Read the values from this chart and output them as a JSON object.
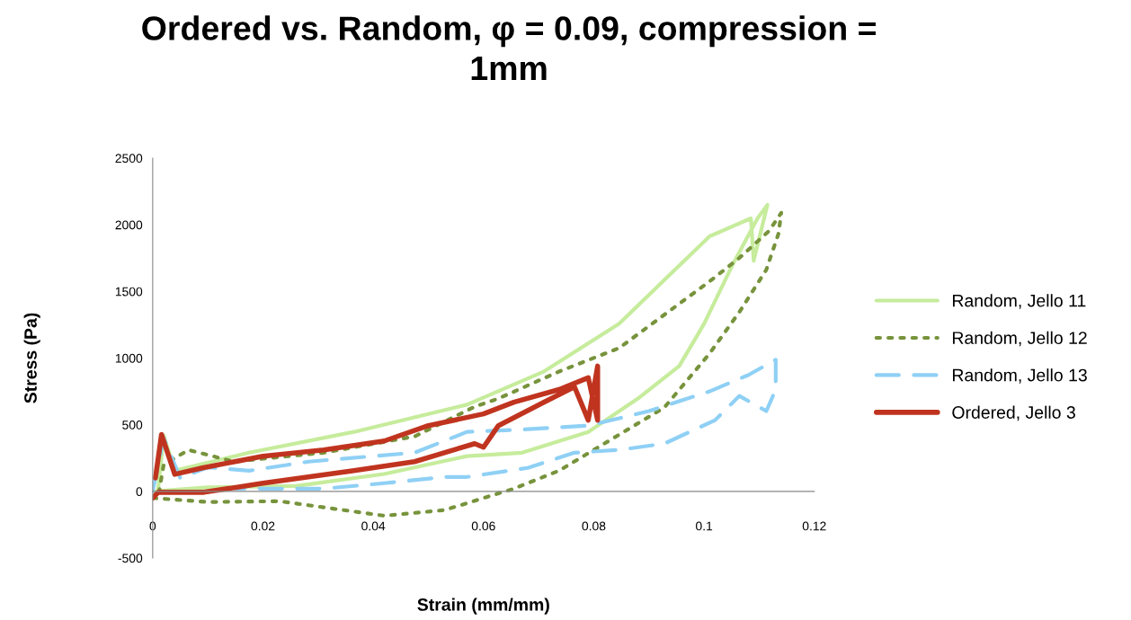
{
  "chart_data": {
    "type": "line",
    "title": "Ordered vs. Random, φ = 0.09, compression =\n1mm",
    "xlabel": "Strain (mm/mm)",
    "ylabel": "Stress (Pa)",
    "xlim": [
      0,
      0.12
    ],
    "xticks": [
      0,
      0.02,
      0.04,
      0.06,
      0.08,
      0.1,
      0.12
    ],
    "ylim": [
      -500,
      2500
    ],
    "yticks": [
      -500,
      0,
      500,
      1000,
      1500,
      2000,
      2500
    ],
    "grid": false,
    "legend": "right",
    "tick_labels": true,
    "series": [
      {
        "name": "Random, Jello 11",
        "color": "#c6ec9c",
        "line_style": "solid",
        "x": [
          0,
          0.01,
          0.026,
          0.042,
          0.057,
          0.067,
          0.079,
          0.088,
          0.0955,
          0.1,
          0.1053,
          0.1097,
          0.1115,
          0.109,
          0.1085,
          0.101,
          0.0846,
          0.071,
          0.057,
          0.0365,
          0.0175,
          0.004,
          0.002,
          0.001
        ],
        "values": [
          0,
          30,
          40,
          130,
          264,
          290,
          446,
          696,
          940,
          1257,
          1710,
          2048,
          2150,
          1730,
          2048,
          1913,
          1257,
          900,
          650,
          446,
          290,
          155,
          420,
          20
        ]
      },
      {
        "name": "Random, Jello 12",
        "color": "#77933c",
        "line_style": "dotted",
        "x": [
          0,
          0.01,
          0.023,
          0.042,
          0.053,
          0.06,
          0.0655,
          0.0737,
          0.0819,
          0.0928,
          0.101,
          0.1064,
          0.1113,
          0.1135,
          0.114,
          0.1118,
          0.1064,
          0.101,
          0.0928,
          0.0846,
          0.0737,
          0.0627,
          0.0584,
          0.0475,
          0.031,
          0.0147,
          0.0065,
          0.002,
          0.001
        ],
        "values": [
          -50,
          -80,
          -74,
          -183,
          -140,
          -50,
          20,
          155,
          358,
          629,
          1034,
          1345,
          1663,
          1933,
          2089,
          1954,
          1751,
          1575,
          1325,
          1075,
          899,
          696,
          635,
          412,
          290,
          223,
          311,
          200,
          -40
        ]
      },
      {
        "name": "Random, Jello 13",
        "color": "#8fd0f5",
        "line_style": "dashed",
        "x": [
          0,
          0.002,
          0.005,
          0.01,
          0.0175,
          0.0283,
          0.0475,
          0.057,
          0.068,
          0.079,
          0.09,
          0.101,
          0.108,
          0.113,
          0.113,
          0.1113,
          0.1064,
          0.102,
          0.0928,
          0.0846,
          0.0765,
          0.068,
          0.057,
          0.053,
          0.042,
          0.031,
          0.015
        ],
        "values": [
          0,
          400,
          100,
          180,
          155,
          223,
          290,
          446,
          466,
          493,
          602,
          750,
          872,
          987,
          764,
          602,
          716,
          534,
          358,
          311,
          290,
          176,
          108,
          108,
          61,
          20,
          20
        ]
      },
      {
        "name": "Ordered, Jello 3",
        "color": "#c0341f",
        "line_style": "solid",
        "x": [
          0,
          0.001,
          0.0093,
          0.02,
          0.0365,
          0.0475,
          0.0584,
          0.06,
          0.0627,
          0.071,
          0.0765,
          0.079,
          0.0807,
          0.0807,
          0.079,
          0.0737,
          0.0655,
          0.06,
          0.05,
          0.042,
          0.031,
          0.02,
          0.009,
          0.004,
          0.0016,
          0.0005
        ],
        "values": [
          -50,
          -7,
          -7,
          61,
          155,
          223,
          358,
          331,
          493,
          669,
          784,
          534,
          940,
          534,
          852,
          764,
          669,
          581,
          493,
          378,
          311,
          264,
          176,
          128,
          426,
          100
        ]
      }
    ]
  }
}
